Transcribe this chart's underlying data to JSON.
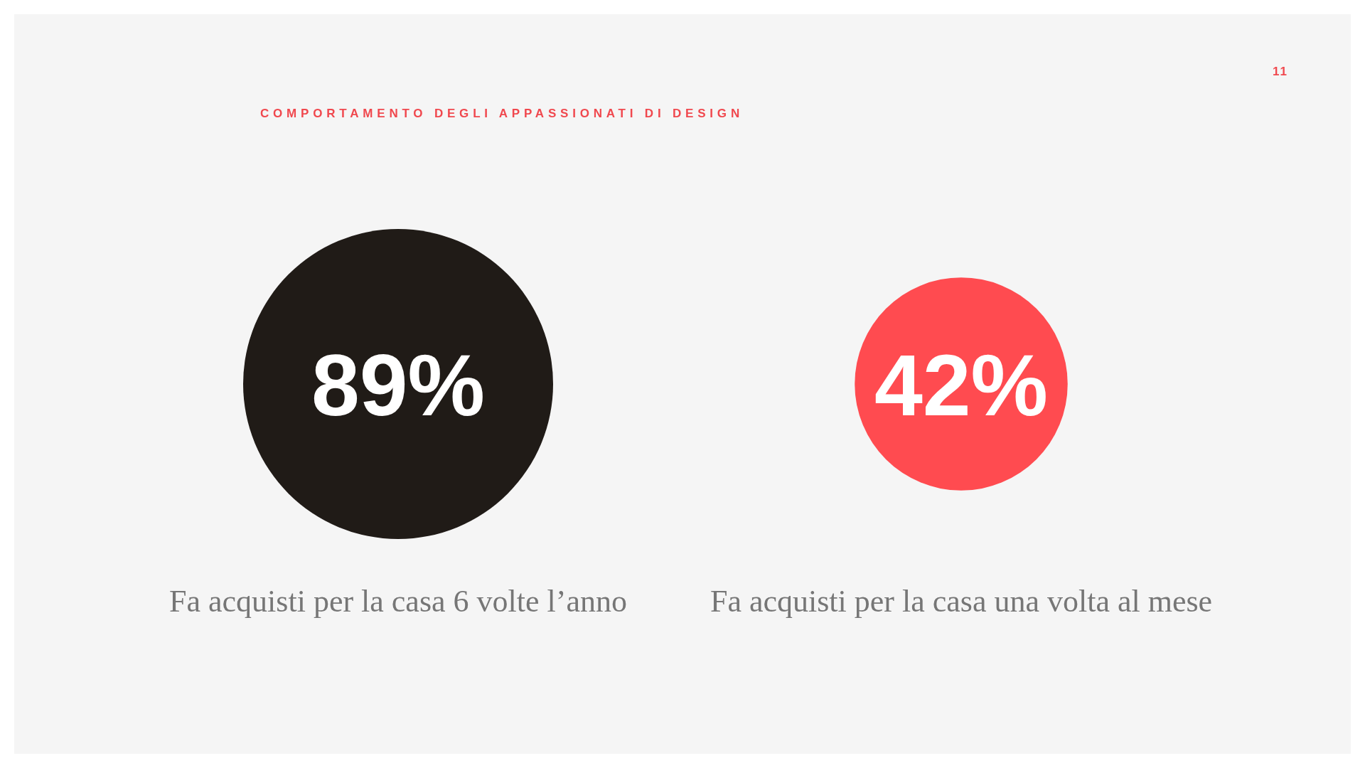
{
  "chart_data": {
    "type": "other",
    "title": "COMPORTAMENTO DEGLI APPASSIONATI DI DESIGN",
    "categories": [
      "Fa acquisti per la casa 6 volte l’anno",
      "Fa acquisti per la casa una volta al mese"
    ],
    "values": [
      89,
      42
    ],
    "value_labels": [
      "89%",
      "42%"
    ],
    "colors": [
      "#201b17",
      "#ff4b50"
    ],
    "annotations": [
      "11"
    ]
  }
}
